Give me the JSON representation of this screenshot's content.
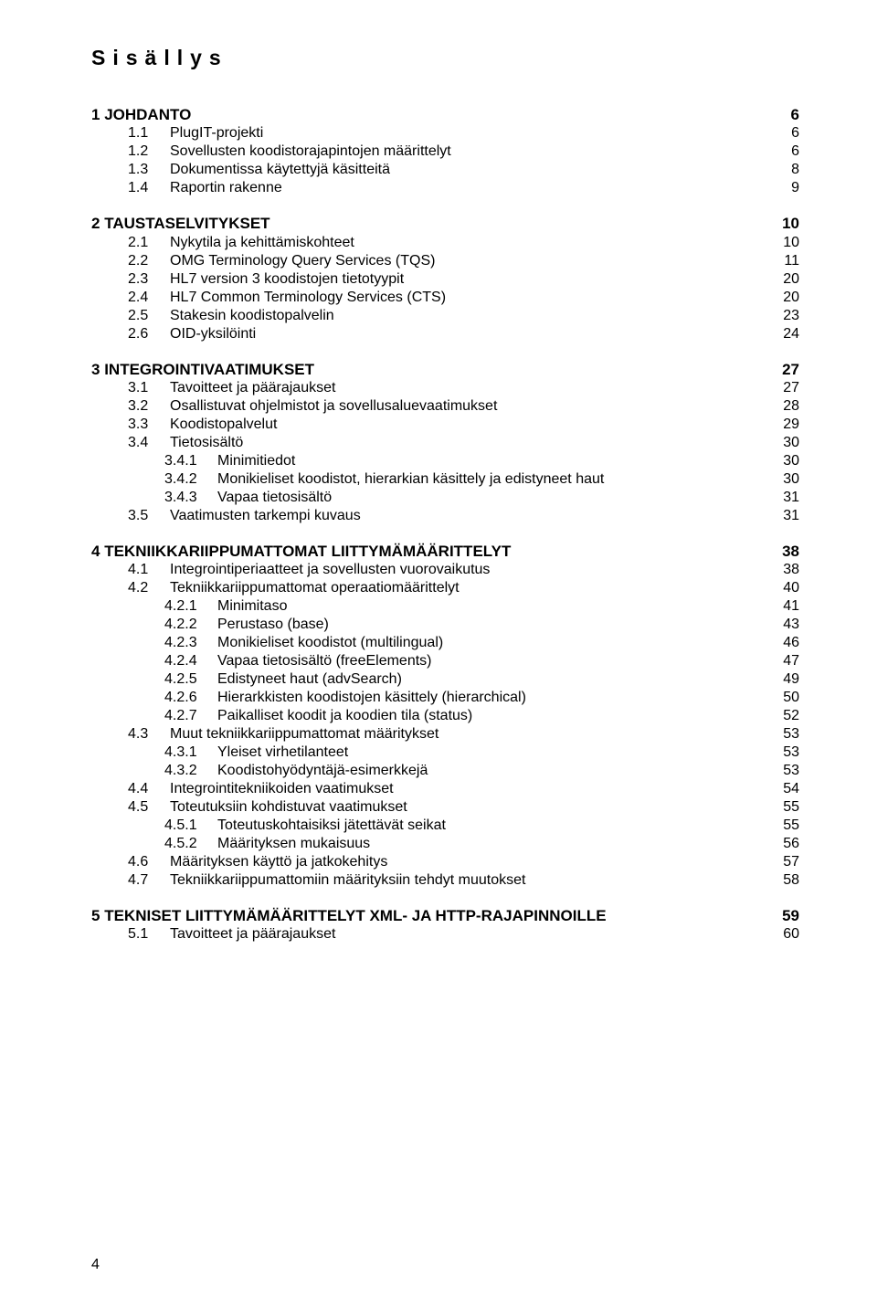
{
  "title": "Sisällys",
  "footer_page": "4",
  "toc": [
    {
      "level": 1,
      "num": "1",
      "label": "JOHDANTO",
      "page": "6"
    },
    {
      "level": 2,
      "num": "1.1",
      "label": "PlugIT-projekti",
      "page": "6"
    },
    {
      "level": 2,
      "num": "1.2",
      "label": "Sovellusten koodistorajapintojen määrittelyt",
      "page": "6"
    },
    {
      "level": 2,
      "num": "1.3",
      "label": "Dokumentissa käytettyjä käsitteitä",
      "page": "8"
    },
    {
      "level": 2,
      "num": "1.4",
      "label": "Raportin rakenne",
      "page": "9"
    },
    {
      "level": 1,
      "num": "2",
      "label": "TAUSTASELVITYKSET",
      "page": "10"
    },
    {
      "level": 2,
      "num": "2.1",
      "label": "Nykytila ja kehittämiskohteet",
      "page": "10"
    },
    {
      "level": 2,
      "num": "2.2",
      "label": "OMG Terminology Query Services (TQS)",
      "page": "11"
    },
    {
      "level": 2,
      "num": "2.3",
      "label": "HL7 version 3 koodistojen tietotyypit",
      "page": "20"
    },
    {
      "level": 2,
      "num": "2.4",
      "label": "HL7 Common Terminology Services (CTS)",
      "page": "20"
    },
    {
      "level": 2,
      "num": "2.5",
      "label": "Stakesin koodistopalvelin",
      "page": "23"
    },
    {
      "level": 2,
      "num": "2.6",
      "label": "OID-yksilöinti",
      "page": "24"
    },
    {
      "level": 1,
      "num": "3",
      "label": "INTEGROINTIVAATIMUKSET",
      "page": "27"
    },
    {
      "level": 2,
      "num": "3.1",
      "label": "Tavoitteet ja päärajaukset",
      "page": "27"
    },
    {
      "level": 2,
      "num": "3.2",
      "label": "Osallistuvat ohjelmistot ja sovellusaluevaatimukset",
      "page": "28"
    },
    {
      "level": 2,
      "num": "3.3",
      "label": "Koodistopalvelut",
      "page": "29"
    },
    {
      "level": 2,
      "num": "3.4",
      "label": "Tietosisältö",
      "page": "30"
    },
    {
      "level": 3,
      "num": "3.4.1",
      "label": "Minimitiedot",
      "page": "30"
    },
    {
      "level": 3,
      "num": "3.4.2",
      "label": "Monikieliset koodistot, hierarkian käsittely ja edistyneet haut",
      "page": "30"
    },
    {
      "level": 3,
      "num": "3.4.3",
      "label": "Vapaa tietosisältö",
      "page": "31"
    },
    {
      "level": 2,
      "num": "3.5",
      "label": "Vaatimusten tarkempi kuvaus",
      "page": "31"
    },
    {
      "level": 1,
      "num": "4",
      "label": "TEKNIIKKARIIPPUMATTOMAT LIITTYMÄMÄÄRITTELYT",
      "page": "38"
    },
    {
      "level": 2,
      "num": "4.1",
      "label": "Integrointiperiaatteet ja sovellusten vuorovaikutus",
      "page": "38"
    },
    {
      "level": 2,
      "num": "4.2",
      "label": "Tekniikkariippumattomat operaatiomäärittelyt",
      "page": "40"
    },
    {
      "level": 3,
      "num": "4.2.1",
      "label": "Minimitaso",
      "page": "41"
    },
    {
      "level": 3,
      "num": "4.2.2",
      "label": "Perustaso (base)",
      "page": "43"
    },
    {
      "level": 3,
      "num": "4.2.3",
      "label": "Monikieliset koodistot (multilingual)",
      "page": "46"
    },
    {
      "level": 3,
      "num": "4.2.4",
      "label": "Vapaa tietosisältö (freeElements)",
      "page": "47"
    },
    {
      "level": 3,
      "num": "4.2.5",
      "label": "Edistyneet haut (advSearch)",
      "page": "49"
    },
    {
      "level": 3,
      "num": "4.2.6",
      "label": "Hierarkkisten koodistojen käsittely (hierarchical)",
      "page": "50"
    },
    {
      "level": 3,
      "num": "4.2.7",
      "label": "Paikalliset koodit ja koodien tila (status)",
      "page": "52"
    },
    {
      "level": 2,
      "num": "4.3",
      "label": "Muut tekniikkariippumattomat määritykset",
      "page": "53"
    },
    {
      "level": 3,
      "num": "4.3.1",
      "label": "Yleiset virhetilanteet",
      "page": "53"
    },
    {
      "level": 3,
      "num": "4.3.2",
      "label": "Koodistohyödyntäjä-esimerkkejä",
      "page": "53"
    },
    {
      "level": 2,
      "num": "4.4",
      "label": "Integrointitekniikoiden vaatimukset",
      "page": "54"
    },
    {
      "level": 2,
      "num": "4.5",
      "label": "Toteutuksiin kohdistuvat vaatimukset",
      "page": "55"
    },
    {
      "level": 3,
      "num": "4.5.1",
      "label": "Toteutuskohtaisiksi jätettävät seikat",
      "page": "55"
    },
    {
      "level": 3,
      "num": "4.5.2",
      "label": "Määrityksen mukaisuus",
      "page": "56"
    },
    {
      "level": 2,
      "num": "4.6",
      "label": "Määrityksen käyttö ja jatkokehitys",
      "page": "57"
    },
    {
      "level": 2,
      "num": "4.7",
      "label": "Tekniikkariippumattomiin määrityksiin tehdyt muutokset",
      "page": "58"
    },
    {
      "level": 1,
      "num": "5",
      "label": "TEKNISET LIITTYMÄMÄÄRITTELYT XML- JA HTTP-RAJAPINNOILLE",
      "page": "59"
    },
    {
      "level": 2,
      "num": "5.1",
      "label": "Tavoitteet ja päärajaukset",
      "page": "60"
    }
  ]
}
